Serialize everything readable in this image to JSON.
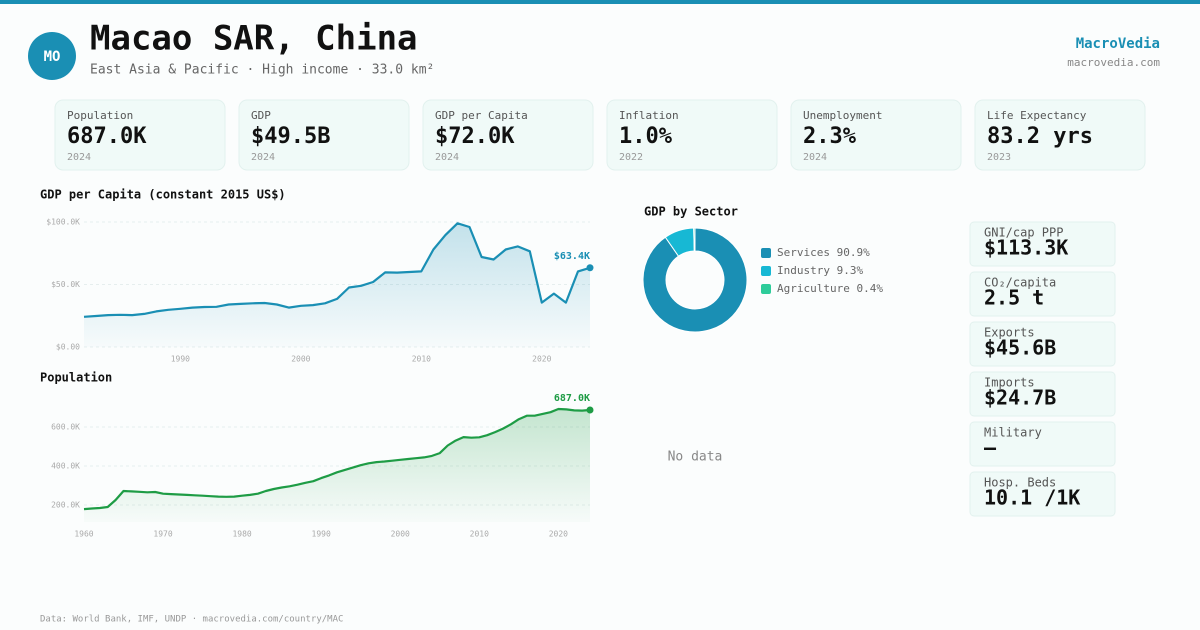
{
  "header": {
    "badge": "MO",
    "title": "Macao SAR, China",
    "subtitle": "East Asia & Pacific · High income · 33.0 km²",
    "brand": "MacroVedia",
    "url": "macrovedia.com"
  },
  "kpis": [
    {
      "label": "Population",
      "value": "687.0K",
      "year": "2024"
    },
    {
      "label": "GDP",
      "value": "$49.5B",
      "year": "2024"
    },
    {
      "label": "GDP per Capita",
      "value": "$72.0K",
      "year": "2024"
    },
    {
      "label": "Inflation",
      "value": "1.0%",
      "year": "2022"
    },
    {
      "label": "Unemployment",
      "value": "2.3%",
      "year": "2024"
    },
    {
      "label": "Life Expectancy",
      "value": "83.2 yrs",
      "year": "2023"
    }
  ],
  "side_stats": [
    {
      "label": "GNI/cap PPP",
      "value": "$113.3K"
    },
    {
      "label": "CO₂/capita",
      "value": "2.5 t"
    },
    {
      "label": "Exports",
      "value": "$45.6B"
    },
    {
      "label": "Imports",
      "value": "$24.7B"
    },
    {
      "label": "Military",
      "value": "—"
    },
    {
      "label": "Hosp. Beds",
      "value": "10.1 /1K"
    }
  ],
  "empty_panel": "No data",
  "footer": "Data: World Bank, IMF, UNDP · macrovedia.com/country/MAC",
  "chart_data": [
    {
      "type": "line",
      "title": "GDP per Capita (constant 2015 US$)",
      "color": "#1a8fb4",
      "x": [
        1982,
        1983,
        1984,
        1985,
        1986,
        1987,
        1988,
        1989,
        1990,
        1991,
        1992,
        1993,
        1994,
        1995,
        1996,
        1997,
        1998,
        1999,
        2000,
        2001,
        2002,
        2003,
        2004,
        2005,
        2006,
        2007,
        2008,
        2009,
        2010,
        2011,
        2012,
        2013,
        2014,
        2015,
        2016,
        2017,
        2018,
        2019,
        2020,
        2021,
        2022,
        2023,
        2024
      ],
      "values": [
        24200,
        24800,
        25500,
        25800,
        25500,
        26500,
        28500,
        29800,
        30600,
        31500,
        32000,
        32200,
        34000,
        34500,
        35000,
        35200,
        34000,
        31500,
        33000,
        33500,
        35000,
        38500,
        47600,
        49000,
        52000,
        59700,
        59500,
        60000,
        60500,
        78000,
        89500,
        99000,
        96000,
        72000,
        70000,
        78000,
        80500,
        76600,
        35500,
        42700,
        35500,
        60500,
        63400
      ],
      "value_labels": [
        null,
        null,
        null,
        null,
        null,
        null,
        null,
        null,
        null,
        null,
        null,
        null,
        null,
        null,
        null,
        null,
        null,
        null,
        null,
        null,
        null,
        null,
        null,
        null,
        null,
        null,
        null,
        null,
        null,
        null,
        null,
        null,
        null,
        null,
        null,
        null,
        null,
        null,
        null,
        null,
        null,
        null,
        "$63.4K"
      ],
      "xlim": [
        1982,
        2024
      ],
      "xticks": [
        1990,
        2000,
        2010,
        2020
      ],
      "ylim": [
        0,
        100000
      ],
      "yticks": [
        {
          "value": 0,
          "label": "$0.00"
        },
        {
          "value": 50000,
          "label": "$50.0K"
        },
        {
          "value": 100000,
          "label": "$100.0K"
        }
      ],
      "grid": true
    },
    {
      "type": "line",
      "title": "Population",
      "color": "#1e9c45",
      "x": [
        1960,
        1961,
        1962,
        1963,
        1964,
        1965,
        1966,
        1967,
        1968,
        1969,
        1970,
        1971,
        1972,
        1973,
        1974,
        1975,
        1976,
        1977,
        1978,
        1979,
        1980,
        1981,
        1982,
        1983,
        1984,
        1985,
        1986,
        1987,
        1988,
        1989,
        1990,
        1991,
        1992,
        1993,
        1994,
        1995,
        1996,
        1997,
        1998,
        1999,
        2000,
        2001,
        2002,
        2003,
        2004,
        2005,
        2006,
        2007,
        2008,
        2009,
        2010,
        2011,
        2012,
        2013,
        2014,
        2015,
        2016,
        2017,
        2018,
        2019,
        2020,
        2021,
        2022,
        2023,
        2024
      ],
      "values": [
        179000,
        182000,
        185000,
        190000,
        226000,
        272000,
        270000,
        268000,
        265000,
        267000,
        258000,
        256000,
        254000,
        252000,
        250000,
        248000,
        245000,
        243000,
        242000,
        243000,
        248000,
        252000,
        258000,
        272000,
        282000,
        290000,
        296000,
        304000,
        314000,
        322000,
        338000,
        352000,
        368000,
        380000,
        392000,
        404000,
        414000,
        420000,
        423000,
        427000,
        432000,
        436000,
        440000,
        444000,
        452000,
        466000,
        505000,
        530000,
        548000,
        545000,
        547000,
        558000,
        574000,
        592000,
        614000,
        640000,
        658000,
        658000,
        667000,
        676000,
        692000,
        690000,
        685000,
        684000,
        687000
      ],
      "value_labels": [
        null,
        null,
        null,
        null,
        null,
        null,
        null,
        null,
        null,
        null,
        null,
        null,
        null,
        null,
        null,
        null,
        null,
        null,
        null,
        null,
        null,
        null,
        null,
        null,
        null,
        null,
        null,
        null,
        null,
        null,
        null,
        null,
        null,
        null,
        null,
        null,
        null,
        null,
        null,
        null,
        null,
        null,
        null,
        null,
        null,
        null,
        null,
        null,
        null,
        null,
        null,
        null,
        null,
        null,
        null,
        null,
        null,
        null,
        null,
        null,
        null,
        null,
        null,
        null,
        "687.0K"
      ],
      "xlim": [
        1960,
        2024
      ],
      "xticks": [
        1960,
        1970,
        1980,
        1990,
        2000,
        2010,
        2020
      ],
      "ylim": [
        113000,
        764000
      ],
      "yticks": [
        {
          "value": 200000,
          "label": "200.0K"
        },
        {
          "value": 400000,
          "label": "400.0K"
        },
        {
          "value": 600000,
          "label": "600.0K"
        }
      ],
      "grid": true
    },
    {
      "type": "pie",
      "title": "GDP by Sector",
      "categories": [
        "Services",
        "Industry",
        "Agriculture"
      ],
      "values": [
        90.9,
        9.3,
        0.4
      ],
      "value_labels": [
        "90.9%",
        "9.3%",
        "0.4%"
      ],
      "colors": [
        "#1a8fb4",
        "#17b8d4",
        "#2ecc9a"
      ]
    }
  ]
}
